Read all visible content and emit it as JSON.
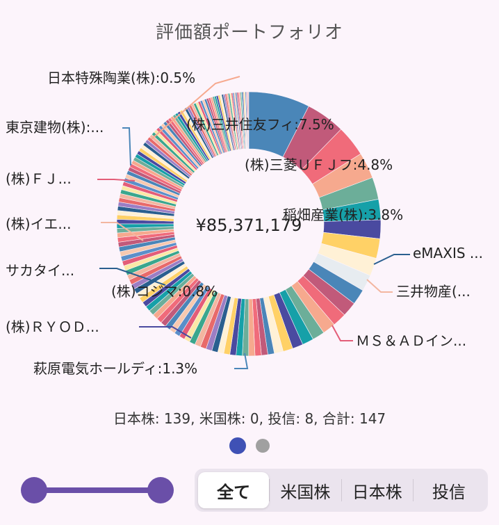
{
  "title": "評価額ポートフォリオ",
  "center_total": "¥85,371,179",
  "summary": "日本株: 139, 米国株: 0, 投信: 8, 合計: 147",
  "pager": {
    "active_index": 0,
    "count": 2
  },
  "segments": [
    {
      "label": "全て",
      "selected": true
    },
    {
      "label": "米国株",
      "selected": false
    },
    {
      "label": "日本株",
      "selected": false
    },
    {
      "label": "投信",
      "selected": false
    }
  ],
  "colors": {
    "accent": "#6a4fa8",
    "pager_active": "#3f51b5",
    "pager_inactive": "#a0a0a0",
    "background": "#fcf4fb"
  },
  "chart_data": {
    "type": "pie",
    "total": "¥85,371,179",
    "segments": [
      {
        "label": "(株)三井住友フィ",
        "percent": 7.5,
        "label_text": "(株)三井住友フィ:7.5%"
      },
      {
        "label": "(株)三菱ＵＦＪフ",
        "percent": 4.8,
        "label_text": "(株)三菱ＵＦＪフ:4.8%"
      },
      {
        "label": "稲畑産業(株)",
        "percent": 3.8,
        "label_text": "稲畑産業(株):3.8%"
      },
      {
        "label": "eMAXIS",
        "percent": null,
        "label_text": "eMAXIS ..."
      },
      {
        "label": "三井物産",
        "percent": null,
        "label_text": "三井物産(..."
      },
      {
        "label": "ＭＳ＆ＡＤイン",
        "percent": null,
        "label_text": "ＭＳ＆ＡＤイン..."
      },
      {
        "label": "萩原電気ホールディ",
        "percent": 1.3,
        "label_text": "萩原電気ホールディ:1.3%"
      },
      {
        "label": "(株)コジマ",
        "percent": 0.8,
        "label_text": "(株)コジマ:0.8%"
      },
      {
        "label": "(株)ＲＹＯＤ",
        "percent": null,
        "label_text": "(株)ＲＹＯＤ..."
      },
      {
        "label": "サカタイ",
        "percent": null,
        "label_text": "サカタイ..."
      },
      {
        "label": "(株)イエ",
        "percent": null,
        "label_text": "(株)イエ..."
      },
      {
        "label": "(株)ＦＪ",
        "percent": null,
        "label_text": "(株)ＦＪ..."
      },
      {
        "label": "東京建物(株)",
        "percent": null,
        "label_text": "東京建物(株):..."
      },
      {
        "label": "日本特殊陶業(株)",
        "percent": 0.5,
        "label_text": "日本特殊陶業(株):0.5%"
      }
    ]
  }
}
